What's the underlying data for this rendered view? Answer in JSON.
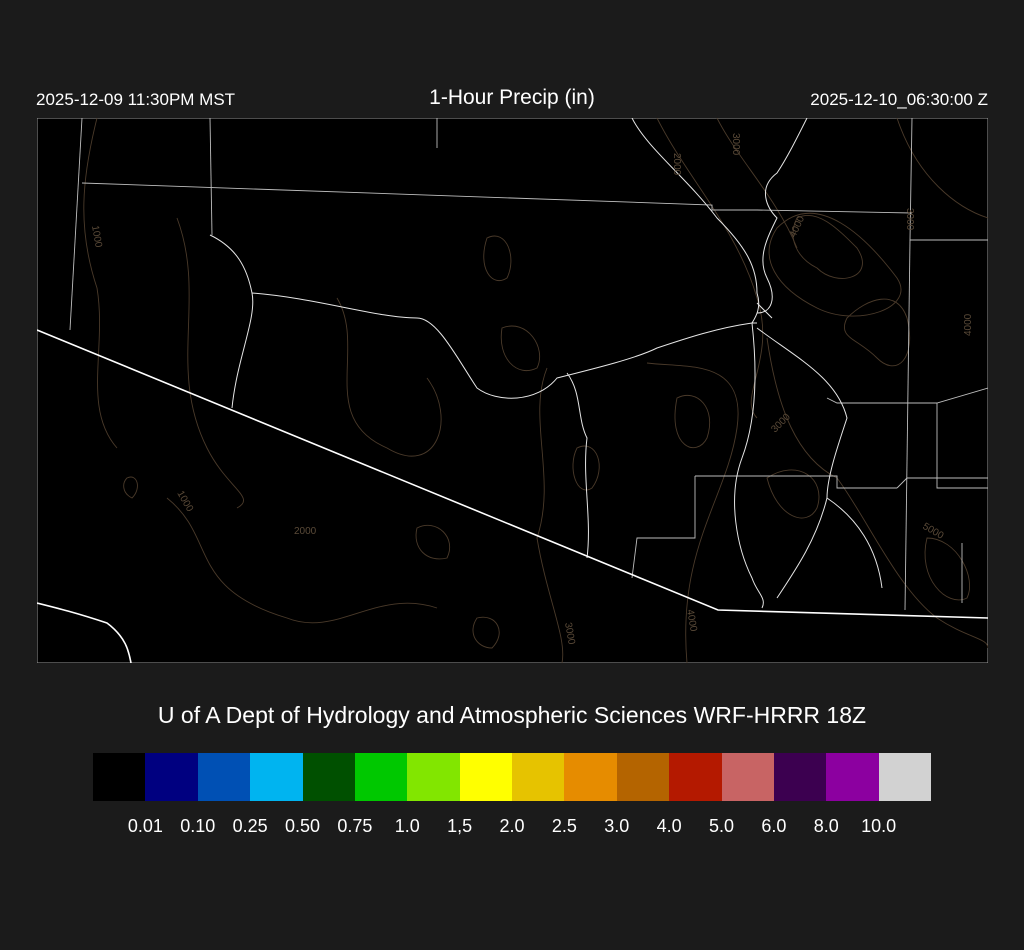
{
  "header": {
    "title": "1-Hour Precip (in)",
    "local_time": "2025-12-09 11:30PM MST",
    "utc_time": "2025-12-10_06:30:00 Z"
  },
  "map": {
    "background": "#000000",
    "contour_color": "#4a3a2a",
    "border_color": "#ffffff",
    "contour_labels": [
      "1000",
      "3000",
      "2000",
      "3000",
      "4000",
      "3000",
      "4000",
      "3000",
      "1000",
      "2000",
      "3000",
      "4000",
      "5000"
    ]
  },
  "footer": {
    "title": "U of A Dept of Hydrology and Atmospheric Sciences WRF-HRRR 18Z"
  },
  "colorbar": {
    "colors": [
      "#000000",
      "#000080",
      "#0050b4",
      "#00b4f0",
      "#005000",
      "#00c800",
      "#82e600",
      "#ffff00",
      "#e6c300",
      "#e68c00",
      "#b46400",
      "#b41900",
      "#c86464",
      "#3c0050",
      "#8c00a0",
      "#d2d2d2"
    ],
    "labels": [
      "0.01",
      "0.10",
      "0.25",
      "0.50",
      "0.75",
      "1.0",
      "1,5",
      "2.0",
      "2.5",
      "3.0",
      "4.0",
      "5.0",
      "6.0",
      "8.0",
      "10.0"
    ]
  }
}
